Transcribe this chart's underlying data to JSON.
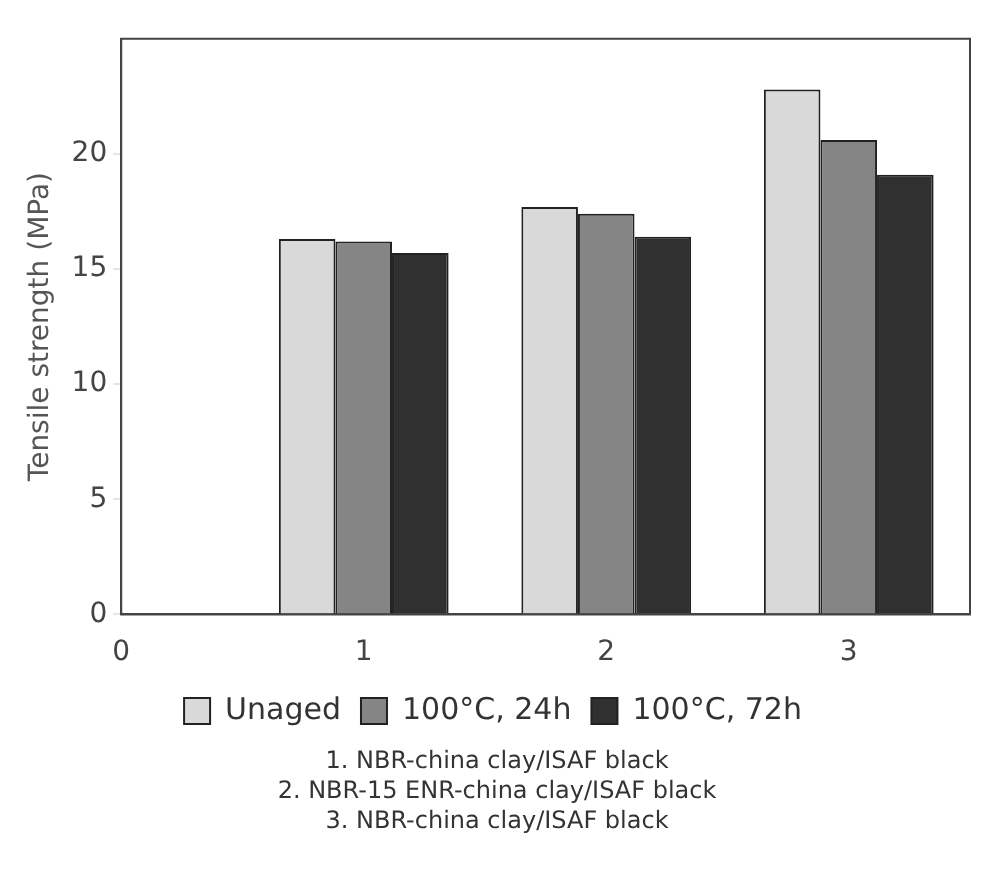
{
  "chart_data": {
    "type": "bar",
    "ylabel": "Tensile strength (MPa)",
    "x": [
      1,
      2,
      3
    ],
    "series": [
      {
        "name": "Unaged",
        "color": "#d9d9d9",
        "values": [
          16.3,
          17.7,
          22.8
        ]
      },
      {
        "name": "100°C, 24h",
        "color": "#858585",
        "values": [
          16.2,
          17.4,
          20.6
        ]
      },
      {
        "name": "100°C, 72h",
        "color": "#303030",
        "values": [
          15.7,
          16.4,
          19.1
        ]
      }
    ],
    "xlim": [
      0,
      3.5
    ],
    "xticks": [
      0,
      1,
      2,
      3
    ],
    "ylim": [
      0,
      25
    ],
    "yticks": [
      0,
      5,
      10,
      15,
      20
    ],
    "grid": false,
    "legend": "bottom",
    "annotations": [
      "1. NBR-china clay/ISAF black",
      "2. NBR-15 ENR-china clay/ISAF black",
      "3. NBR-china clay/ISAF black"
    ]
  }
}
